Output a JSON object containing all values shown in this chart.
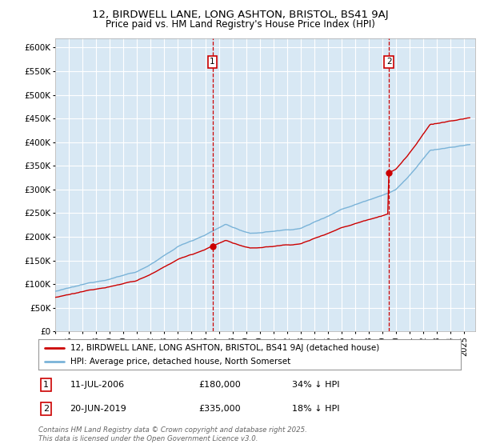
{
  "title": "12, BIRDWELL LANE, LONG ASHTON, BRISTOL, BS41 9AJ",
  "subtitle": "Price paid vs. HM Land Registry's House Price Index (HPI)",
  "ylabel_ticks": [
    "£0",
    "£50K",
    "£100K",
    "£150K",
    "£200K",
    "£250K",
    "£300K",
    "£350K",
    "£400K",
    "£450K",
    "£500K",
    "£550K",
    "£600K"
  ],
  "ytick_values": [
    0,
    50000,
    100000,
    150000,
    200000,
    250000,
    300000,
    350000,
    400000,
    450000,
    500000,
    550000,
    600000
  ],
  "ylim": [
    0,
    620000
  ],
  "xlim_start": 1995.0,
  "xlim_end": 2025.8,
  "purchase1_date": 2006.53,
  "purchase1_price": 180000,
  "purchase2_date": 2019.47,
  "purchase2_price": 335000,
  "hpi_color": "#7ab3d8",
  "price_color": "#cc0000",
  "plot_bg_color": "#d8e8f4",
  "grid_color": "#ffffff",
  "legend_entry1": "12, BIRDWELL LANE, LONG ASHTON, BRISTOL, BS41 9AJ (detached house)",
  "legend_entry2": "HPI: Average price, detached house, North Somerset",
  "annotation1_date": "11-JUL-2006",
  "annotation1_price": "£180,000",
  "annotation1_pct": "34% ↓ HPI",
  "annotation2_date": "20-JUN-2019",
  "annotation2_price": "£335,000",
  "annotation2_pct": "18% ↓ HPI",
  "footer": "Contains HM Land Registry data © Crown copyright and database right 2025.\nThis data is licensed under the Open Government Licence v3.0."
}
